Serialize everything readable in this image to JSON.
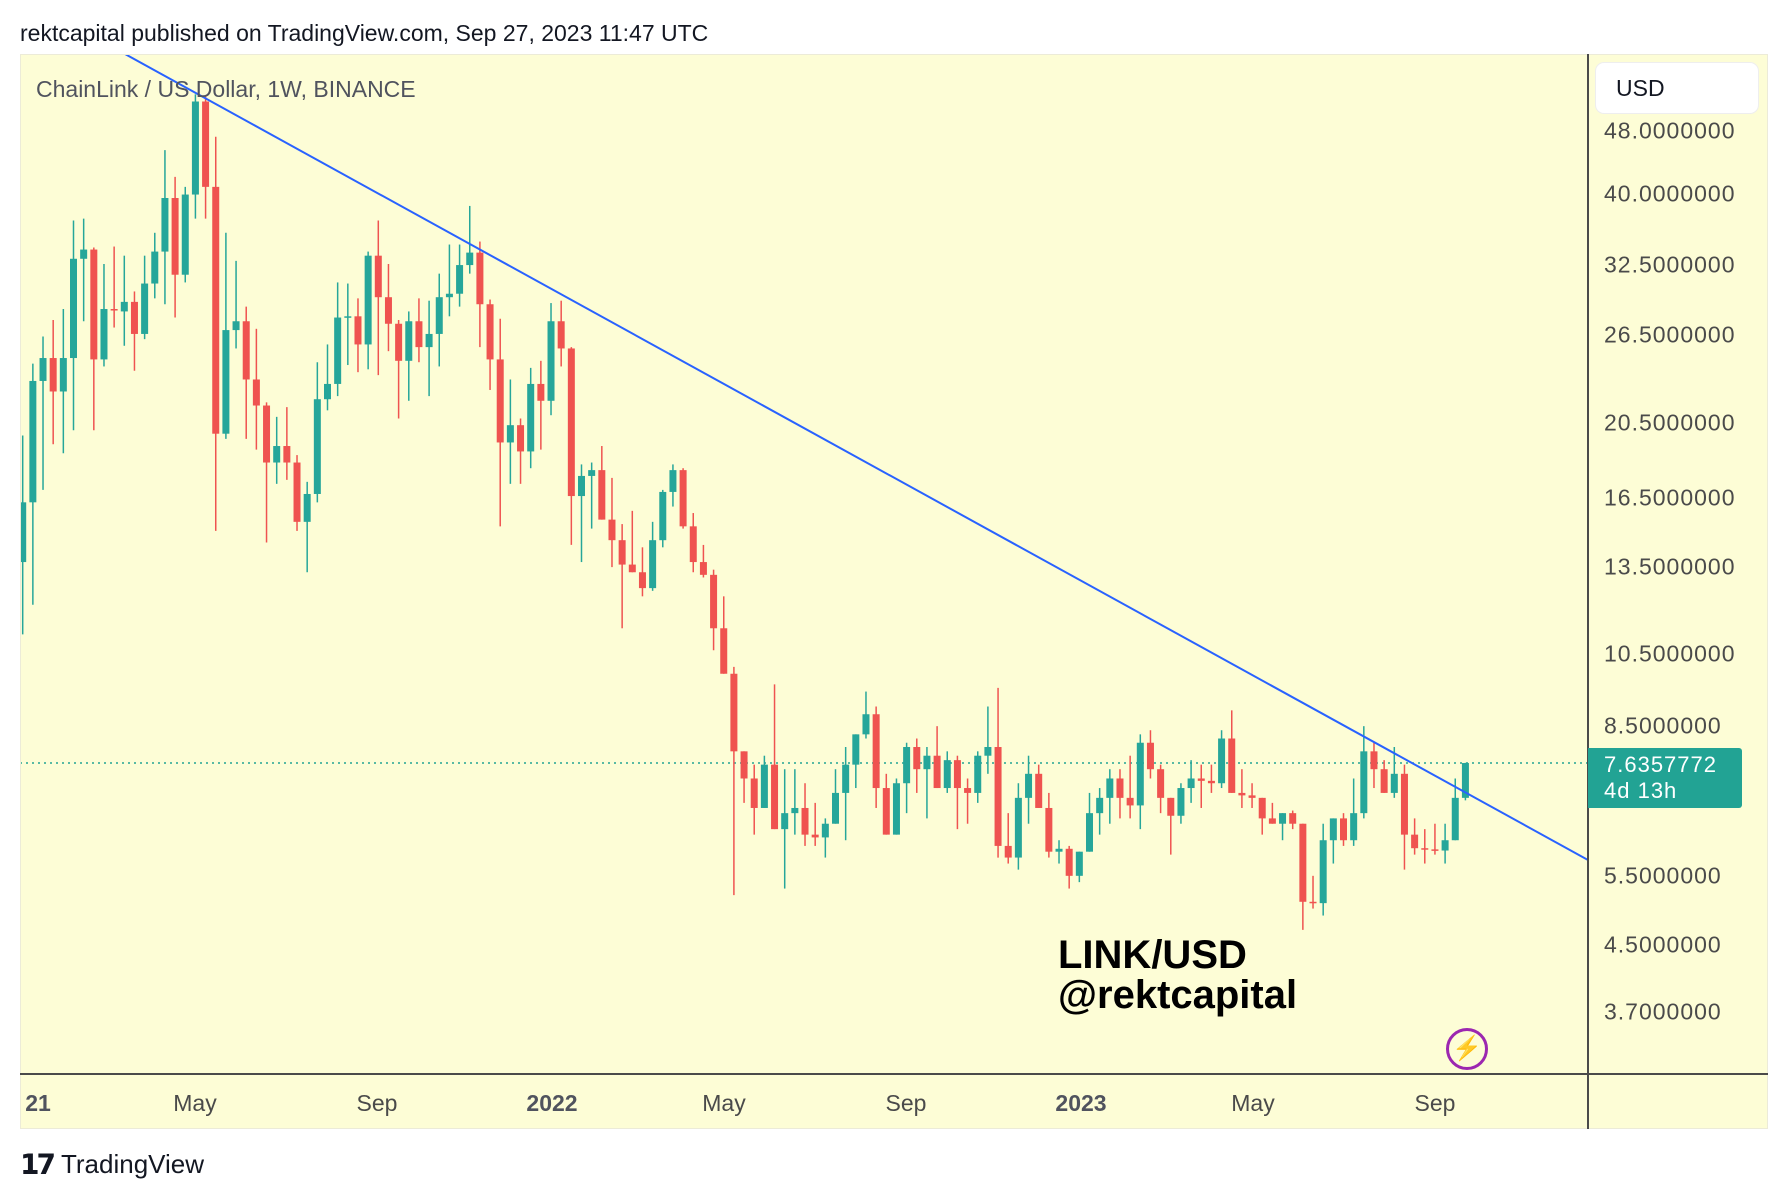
{
  "header": {
    "published": "rektcapital published on TradingView.com, Sep 27, 2023 11:47 UTC"
  },
  "footer": {
    "brand": "TradingView",
    "logo_text": "17"
  },
  "chart_data": {
    "type": "candlestick",
    "title": "ChainLink / US Dollar, 1W, BINANCE",
    "currency": "USD",
    "y_scale": "log",
    "ylim": [
      3.2,
      58
    ],
    "grid": false,
    "y_ticks": [
      "48.0000000",
      "40.0000000",
      "32.5000000",
      "26.5000000",
      "20.5000000",
      "16.5000000",
      "13.5000000",
      "10.5000000",
      "8.5000000",
      "5.5000000",
      "4.5000000",
      "3.7000000"
    ],
    "x_ticks": [
      {
        "label": "21",
        "year": true
      },
      {
        "label": "May",
        "year": false
      },
      {
        "label": "Sep",
        "year": false
      },
      {
        "label": "2022",
        "year": true
      },
      {
        "label": "May",
        "year": false
      },
      {
        "label": "Sep",
        "year": false
      },
      {
        "label": "2023",
        "year": true
      },
      {
        "label": "May",
        "year": false
      },
      {
        "label": "Sep",
        "year": false
      }
    ],
    "last_price": "7.6357772",
    "countdown": "4d 13h",
    "colors": {
      "up": "#26a69a",
      "down": "#ef5350",
      "trendline": "#2962ff",
      "last_price": "#22a394",
      "background": "#fdfdd6"
    },
    "candles_ohlc": [
      [
        13.7,
        19.8,
        11.1,
        16.3
      ],
      [
        16.3,
        24.4,
        12.1,
        23.2
      ],
      [
        23.2,
        26.4,
        16.9,
        24.8
      ],
      [
        24.8,
        27.7,
        19.3,
        22.5
      ],
      [
        22.5,
        28.6,
        18.8,
        24.8
      ],
      [
        24.8,
        37.0,
        20.1,
        33.1
      ],
      [
        33.1,
        37.2,
        27.6,
        34.0
      ],
      [
        34.0,
        34.2,
        20.1,
        24.7
      ],
      [
        24.7,
        32.6,
        24.2,
        28.6
      ],
      [
        28.6,
        34.3,
        27.1,
        28.5
      ],
      [
        28.4,
        33.4,
        25.7,
        29.2
      ],
      [
        29.2,
        30.1,
        23.9,
        26.6
      ],
      [
        26.6,
        33.4,
        26.2,
        30.8
      ],
      [
        30.8,
        35.7,
        29.5,
        33.8
      ],
      [
        33.8,
        45.4,
        29.0,
        39.5
      ],
      [
        39.5,
        42.0,
        27.9,
        31.6
      ],
      [
        31.6,
        40.8,
        30.9,
        39.9
      ],
      [
        39.9,
        53.4,
        37.2,
        52.3
      ],
      [
        52.3,
        53.3,
        37.2,
        40.8
      ],
      [
        40.8,
        47.2,
        15.0,
        19.9
      ],
      [
        19.9,
        35.7,
        19.6,
        26.9
      ],
      [
        26.9,
        32.9,
        25.5,
        27.6
      ],
      [
        27.6,
        28.8,
        19.6,
        23.3
      ],
      [
        23.3,
        27.0,
        19.0,
        21.6
      ],
      [
        21.6,
        21.8,
        14.5,
        18.3
      ],
      [
        18.3,
        20.9,
        17.2,
        19.2
      ],
      [
        19.2,
        21.5,
        17.4,
        18.3
      ],
      [
        18.3,
        18.7,
        15.0,
        15.4
      ],
      [
        15.4,
        17.3,
        13.3,
        16.7
      ],
      [
        16.7,
        24.5,
        16.3,
        22.0
      ],
      [
        22.0,
        25.8,
        21.3,
        23.0
      ],
      [
        23.0,
        30.9,
        22.2,
        27.9
      ],
      [
        27.9,
        30.8,
        24.3,
        28.0
      ],
      [
        28.0,
        29.5,
        23.8,
        25.8
      ],
      [
        25.8,
        33.8,
        24.0,
        33.4
      ],
      [
        33.4,
        37.0,
        23.6,
        29.6
      ],
      [
        29.6,
        32.6,
        25.3,
        27.4
      ],
      [
        27.4,
        27.7,
        20.8,
        24.6
      ],
      [
        24.6,
        28.4,
        21.9,
        27.6
      ],
      [
        27.6,
        29.5,
        24.5,
        25.6
      ],
      [
        25.6,
        29.3,
        22.2,
        26.6
      ],
      [
        26.6,
        31.7,
        24.2,
        29.6
      ],
      [
        29.6,
        34.5,
        28.0,
        29.9
      ],
      [
        29.9,
        34.5,
        28.8,
        32.5
      ],
      [
        32.5,
        38.6,
        31.7,
        33.7
      ],
      [
        33.7,
        34.8,
        25.6,
        29.0
      ],
      [
        29.0,
        29.4,
        22.6,
        24.7
      ],
      [
        24.7,
        27.8,
        15.2,
        19.4
      ],
      [
        19.4,
        23.3,
        17.2,
        20.4
      ],
      [
        20.4,
        20.8,
        17.2,
        18.9
      ],
      [
        18.9,
        24.1,
        18.0,
        23.0
      ],
      [
        23.0,
        24.6,
        19.0,
        21.9
      ],
      [
        21.9,
        29.1,
        21.0,
        27.6
      ],
      [
        27.6,
        29.3,
        24.2,
        25.5
      ],
      [
        25.5,
        25.6,
        14.4,
        16.6
      ],
      [
        16.6,
        18.2,
        13.7,
        17.6
      ],
      [
        17.6,
        18.3,
        15.1,
        17.9
      ],
      [
        17.9,
        19.2,
        15.5,
        15.5
      ],
      [
        15.5,
        17.5,
        13.5,
        14.6
      ],
      [
        14.6,
        15.3,
        11.3,
        13.6
      ],
      [
        13.6,
        15.9,
        13.3,
        13.3
      ],
      [
        13.3,
        14.3,
        12.4,
        12.7
      ],
      [
        12.7,
        15.4,
        12.6,
        14.6
      ],
      [
        14.6,
        16.9,
        14.3,
        16.8
      ],
      [
        16.8,
        18.2,
        16.1,
        17.9
      ],
      [
        17.9,
        18.0,
        15.1,
        15.2
      ],
      [
        15.2,
        15.8,
        13.3,
        13.7
      ],
      [
        13.7,
        14.4,
        13.1,
        13.2
      ],
      [
        13.2,
        13.4,
        10.6,
        11.3
      ],
      [
        11.3,
        12.4,
        9.9,
        9.9
      ],
      [
        9.9,
        10.1,
        5.2,
        7.9
      ],
      [
        7.9,
        7.9,
        6.8,
        7.3
      ],
      [
        7.3,
        7.6,
        6.2,
        6.7
      ],
      [
        6.7,
        7.8,
        6.7,
        7.6
      ],
      [
        7.6,
        9.6,
        6.3,
        6.3
      ],
      [
        6.3,
        7.5,
        5.3,
        6.6
      ],
      [
        6.6,
        7.5,
        6.2,
        6.7
      ],
      [
        6.7,
        7.2,
        6.0,
        6.2
      ],
      [
        6.2,
        6.8,
        6.0,
        6.15
      ],
      [
        6.15,
        6.5,
        5.8,
        6.4
      ],
      [
        6.4,
        7.5,
        6.4,
        7.0
      ],
      [
        7.0,
        8.0,
        6.1,
        7.6
      ],
      [
        7.6,
        8.3,
        7.1,
        8.3
      ],
      [
        8.3,
        9.4,
        8.2,
        8.8
      ],
      [
        8.8,
        9.0,
        6.7,
        7.1
      ],
      [
        7.1,
        7.4,
        6.2,
        6.2
      ],
      [
        6.2,
        7.3,
        6.2,
        7.2
      ],
      [
        7.2,
        8.1,
        6.6,
        8.0
      ],
      [
        8.0,
        8.2,
        7.0,
        7.5
      ],
      [
        7.5,
        8.0,
        6.5,
        7.8
      ],
      [
        7.8,
        8.5,
        7.1,
        7.1
      ],
      [
        7.1,
        7.9,
        7.0,
        7.7
      ],
      [
        7.7,
        7.8,
        6.3,
        7.1
      ],
      [
        7.1,
        7.3,
        6.4,
        7.0
      ],
      [
        7.0,
        7.9,
        6.8,
        7.8
      ],
      [
        7.8,
        9.0,
        7.4,
        8.0
      ],
      [
        8.0,
        9.5,
        5.8,
        6.0
      ],
      [
        6.0,
        6.6,
        5.7,
        5.8
      ],
      [
        5.8,
        7.2,
        5.6,
        6.9
      ],
      [
        6.9,
        7.8,
        6.4,
        7.4
      ],
      [
        7.4,
        7.6,
        6.7,
        6.7
      ],
      [
        6.7,
        7.0,
        5.8,
        5.9
      ],
      [
        5.9,
        6.1,
        5.7,
        5.95
      ],
      [
        5.95,
        6.0,
        5.3,
        5.5
      ],
      [
        5.5,
        5.9,
        5.4,
        5.9
      ],
      [
        5.9,
        7.0,
        5.9,
        6.6
      ],
      [
        6.6,
        7.1,
        6.2,
        6.9
      ],
      [
        6.9,
        7.5,
        6.4,
        7.3
      ],
      [
        7.3,
        7.5,
        6.5,
        6.9
      ],
      [
        6.9,
        7.8,
        6.5,
        6.75
      ],
      [
        6.75,
        8.3,
        6.3,
        8.1
      ],
      [
        8.1,
        8.4,
        7.3,
        7.5
      ],
      [
        7.5,
        7.6,
        6.6,
        6.9
      ],
      [
        6.9,
        6.9,
        5.85,
        6.55
      ],
      [
        6.55,
        7.2,
        6.4,
        7.1
      ],
      [
        7.1,
        7.7,
        6.8,
        7.3
      ],
      [
        7.3,
        7.6,
        6.7,
        7.25
      ],
      [
        7.25,
        7.6,
        7.0,
        7.2
      ],
      [
        7.2,
        8.4,
        7.1,
        8.2
      ],
      [
        8.2,
        8.9,
        7.0,
        7.0
      ],
      [
        7.0,
        7.5,
        6.7,
        6.95
      ],
      [
        6.95,
        7.2,
        6.7,
        6.9
      ],
      [
        6.9,
        6.9,
        6.2,
        6.5
      ],
      [
        6.5,
        6.8,
        6.4,
        6.4
      ],
      [
        6.4,
        6.6,
        6.1,
        6.6
      ],
      [
        6.6,
        6.65,
        6.3,
        6.4
      ],
      [
        6.4,
        6.4,
        4.7,
        5.1
      ],
      [
        5.1,
        5.5,
        5.0,
        5.08
      ],
      [
        5.08,
        6.4,
        4.9,
        6.1
      ],
      [
        6.1,
        6.5,
        5.7,
        6.5
      ],
      [
        6.5,
        6.6,
        6.0,
        6.1
      ],
      [
        6.1,
        7.3,
        6.0,
        6.6
      ],
      [
        6.6,
        8.5,
        6.5,
        7.9
      ],
      [
        7.9,
        8.1,
        7.1,
        7.5
      ],
      [
        7.5,
        7.7,
        7.0,
        7.0
      ],
      [
        7.0,
        8.0,
        6.9,
        7.4
      ],
      [
        7.4,
        7.6,
        5.6,
        6.2
      ],
      [
        6.2,
        6.5,
        5.85,
        5.96
      ],
      [
        5.96,
        6.3,
        5.7,
        5.94
      ],
      [
        5.94,
        6.4,
        5.85,
        5.92
      ],
      [
        5.92,
        6.4,
        5.7,
        6.1
      ],
      [
        6.1,
        7.3,
        6.1,
        6.9
      ],
      [
        6.9,
        7.64,
        6.85,
        7.6357772
      ]
    ],
    "annotations": {
      "watermark_line1": "LINK/USD",
      "watermark_line2": "@rektcapital"
    }
  },
  "icons": {
    "alert": "lightning-bolt-icon",
    "logo": "tradingview-logo-icon"
  }
}
